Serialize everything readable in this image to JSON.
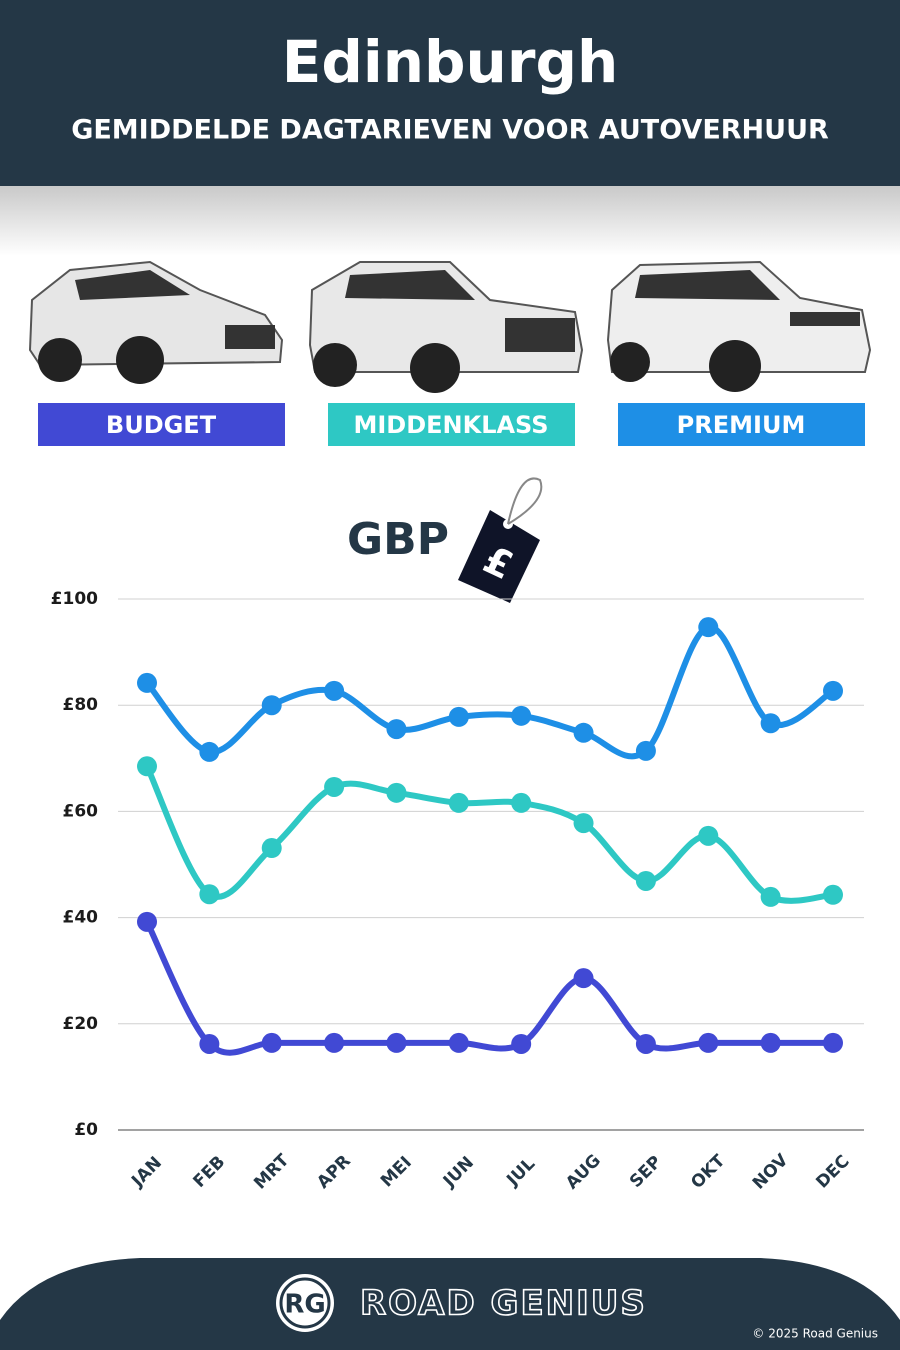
{
  "chart_data": {
    "type": "line",
    "title": "Edinburgh",
    "subtitle": "GEMIDDELDE DAGTARIEVEN VOOR AUTOVERHUUR",
    "currency_label": "GBP",
    "currency_symbol": "£",
    "categories": [
      "JAN",
      "FEB",
      "MRT",
      "APR",
      "MEI",
      "JUN",
      "JUL",
      "AUG",
      "SEP",
      "OKT",
      "NOV",
      "DEC"
    ],
    "series": [
      {
        "name": "BUDGET",
        "color": "#4149d4",
        "values": [
          39.2,
          16.2,
          16.4,
          16.4,
          16.4,
          16.4,
          16.2,
          28.6,
          16.2,
          16.4,
          16.4,
          16.4
        ]
      },
      {
        "name": "MIDDENKLASS",
        "color": "#2ec8c4",
        "values": [
          68.5,
          44.4,
          53.1,
          64.6,
          63.5,
          61.6,
          61.6,
          57.8,
          46.9,
          55.4,
          43.9,
          44.3
        ]
      },
      {
        "name": "PREMIUM",
        "color": "#1e8fe6",
        "values": [
          84.2,
          71.2,
          80,
          82.7,
          75.5,
          77.8,
          78,
          74.8,
          71.4,
          94.7,
          76.6,
          82.7
        ]
      }
    ],
    "ylim": [
      0,
      100
    ],
    "yticks": [
      {
        "value": 0,
        "label": "£0"
      },
      {
        "value": 20,
        "label": "£20"
      },
      {
        "value": 40,
        "label": "£40"
      },
      {
        "value": 60,
        "label": "£60"
      },
      {
        "value": 80,
        "label": "£80"
      },
      {
        "value": 100,
        "label": "£100"
      }
    ],
    "grid": true
  },
  "footer": {
    "logo": "RG",
    "brand": "ROAD GENIUS",
    "copyright": "© 2025 Road Genius"
  }
}
